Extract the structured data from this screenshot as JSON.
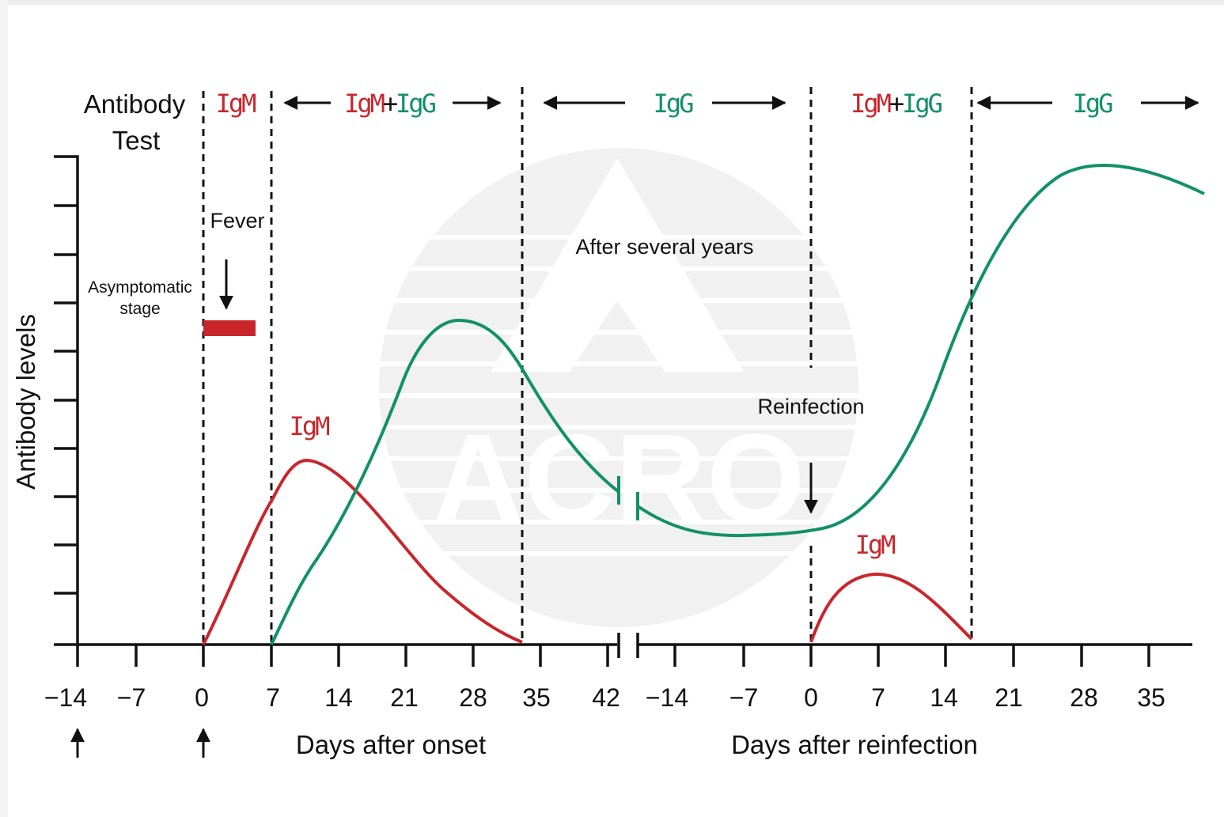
{
  "antibody_test": {
    "label": [
      "Antibody",
      "Test"
    ],
    "phases": [
      [
        "IgM"
      ],
      [
        "IgM",
        "+",
        "IgG"
      ],
      [
        "IgG"
      ],
      [
        "IgM",
        "+",
        "IgG"
      ],
      [
        "IgG"
      ]
    ]
  },
  "y_axis": "Antibody levels",
  "x_axis_left": "Days after onset",
  "x_axis_right": "Days after reinfection",
  "onset_ticks": [
    "−14",
    "−7",
    "0",
    "7",
    "14",
    "21",
    "28",
    "35",
    "42"
  ],
  "reinfection_ticks": [
    "−14",
    "−7",
    "0",
    "7",
    "14",
    "21",
    "28",
    "35"
  ],
  "annotations": {
    "fever": "Fever",
    "asymptomatic": [
      "Asymptomatic",
      "stage"
    ],
    "after_years": "After several years",
    "reinfection": "Reinfection"
  },
  "curve_labels": [
    "IgM",
    "IgM"
  ],
  "watermark": "ACRO"
}
